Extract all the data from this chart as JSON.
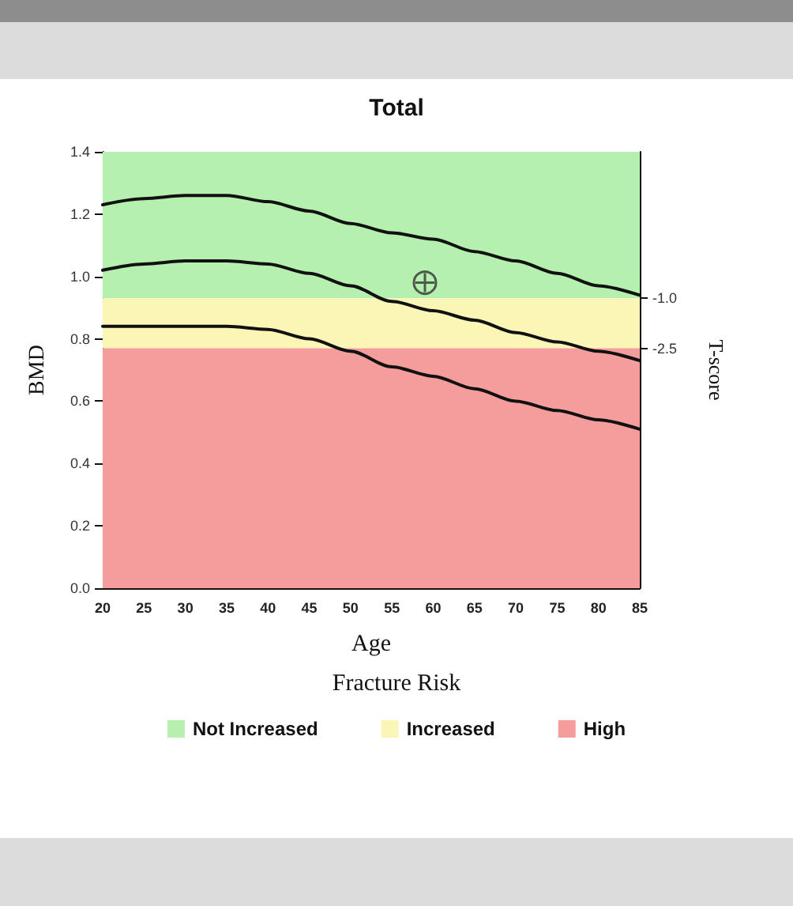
{
  "chart_data": {
    "type": "line",
    "title": "Total",
    "xlabel": "Age",
    "ylabel": "BMD",
    "y2label": "T-score",
    "legend_title": "Fracture Risk",
    "x": [
      20,
      25,
      30,
      35,
      40,
      45,
      50,
      55,
      60,
      65,
      70,
      75,
      80,
      85
    ],
    "series": [
      {
        "color": "#111111",
        "values": [
          1.23,
          1.25,
          1.26,
          1.26,
          1.24,
          1.21,
          1.17,
          1.14,
          1.12,
          1.08,
          1.05,
          1.01,
          0.97,
          0.94
        ]
      },
      {
        "color": "#111111",
        "values": [
          1.02,
          1.04,
          1.05,
          1.05,
          1.04,
          1.01,
          0.97,
          0.92,
          0.89,
          0.86,
          0.82,
          0.79,
          0.76,
          0.73
        ]
      },
      {
        "color": "#111111",
        "values": [
          0.84,
          0.84,
          0.84,
          0.84,
          0.83,
          0.8,
          0.76,
          0.71,
          0.68,
          0.64,
          0.6,
          0.57,
          0.54,
          0.51
        ]
      },
      {
        "type": "scatter",
        "color": "#333333",
        "x": [
          59
        ],
        "values": [
          0.98
        ],
        "marker": "circle"
      }
    ],
    "bands": [
      {
        "axis": "y",
        "from": 0.93,
        "to": 1.4,
        "label": "Not Increased",
        "color": "#b6f0ae"
      },
      {
        "axis": "y",
        "from": 0.77,
        "to": 0.93,
        "label": "Increased",
        "color": "#fbf6b6"
      },
      {
        "axis": "y",
        "from": 0,
        "to": 0.77,
        "label": "High",
        "color": "#f59c9c"
      }
    ],
    "xlim": [
      20,
      85
    ],
    "xticks": [
      20,
      25,
      30,
      35,
      40,
      45,
      50,
      55,
      60,
      65,
      70,
      75,
      80,
      85
    ],
    "ylim": [
      0,
      1.4
    ],
    "yticks": [
      {
        "value": 0,
        "label": "0.0"
      },
      {
        "value": 0.2,
        "label": "0.2"
      },
      {
        "value": 0.4,
        "label": "0.4"
      },
      {
        "value": 0.6,
        "label": "0.6"
      },
      {
        "value": 0.8,
        "label": "0.8"
      },
      {
        "value": 1.0,
        "label": "1.0"
      },
      {
        "value": 1.2,
        "label": "1.2"
      },
      {
        "value": 1.4,
        "label": "1.4"
      }
    ],
    "y2lim": [
      -9.7,
      3.4
    ],
    "y2ticks": [
      {
        "value": -1.0,
        "label": "-1.0"
      },
      {
        "value": -2.5,
        "label": "-2.5"
      }
    ],
    "grid": false,
    "legend": "bottom",
    "marker": "none",
    "line_style": "solid"
  }
}
